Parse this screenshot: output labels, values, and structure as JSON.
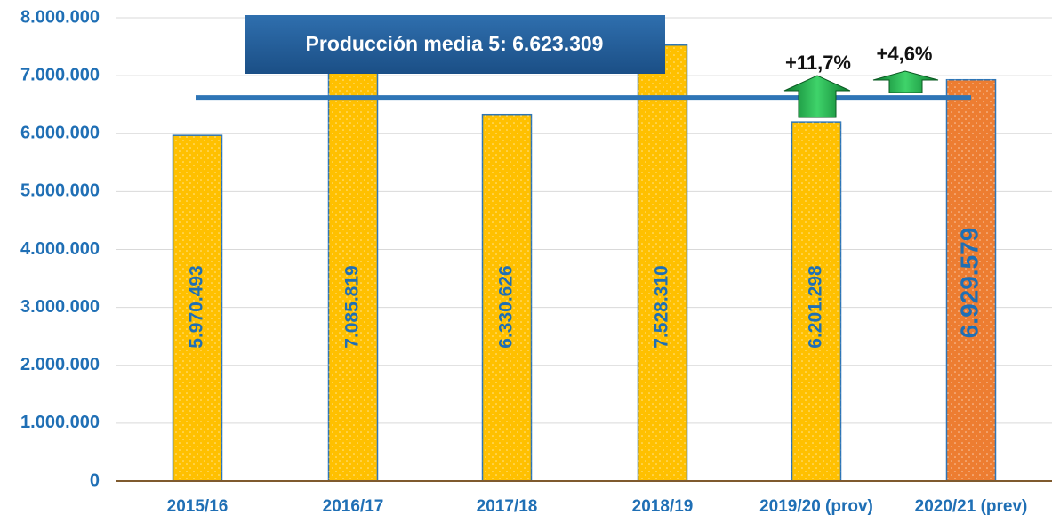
{
  "chart_data": {
    "type": "bar",
    "categories": [
      "2015/16",
      "2016/17",
      "2017/18",
      "2018/19",
      "2019/20 (prov)",
      "2020/21 (prev)"
    ],
    "values": [
      5970493,
      7085819,
      6330626,
      7528310,
      6201298,
      6929579
    ],
    "value_labels": [
      "5.970.493",
      "7.085.819",
      "6.330.626",
      "7.528.310",
      "6.201.298",
      "6.929.579"
    ],
    "colors": [
      "#ffc000",
      "#ffc000",
      "#ffc000",
      "#ffc000",
      "#ffc000",
      "#ed7d31"
    ],
    "ylim": [
      0,
      8000000
    ],
    "yticks": [
      0,
      {
        "value": 1000000,
        "label": "1.000.000"
      },
      {
        "value": 2000000,
        "label": "2.000.000"
      },
      {
        "value": 3000000,
        "label": "3.000.000"
      },
      {
        "value": 4000000,
        "label": "4.000.000"
      },
      {
        "value": 5000000,
        "label": "5.000.000"
      },
      {
        "value": 6000000,
        "label": "6.000.000"
      },
      {
        "value": 7000000,
        "label": "7.000.000"
      },
      {
        "value": 8000000,
        "label": "8.000.000"
      }
    ],
    "grid": true,
    "reference_line": {
      "value": 6623309,
      "label": "Producción media 5: 6.623.309",
      "color": "#2e75b6"
    },
    "annotations": [
      "+11,7%",
      "+4,6%"
    ]
  }
}
